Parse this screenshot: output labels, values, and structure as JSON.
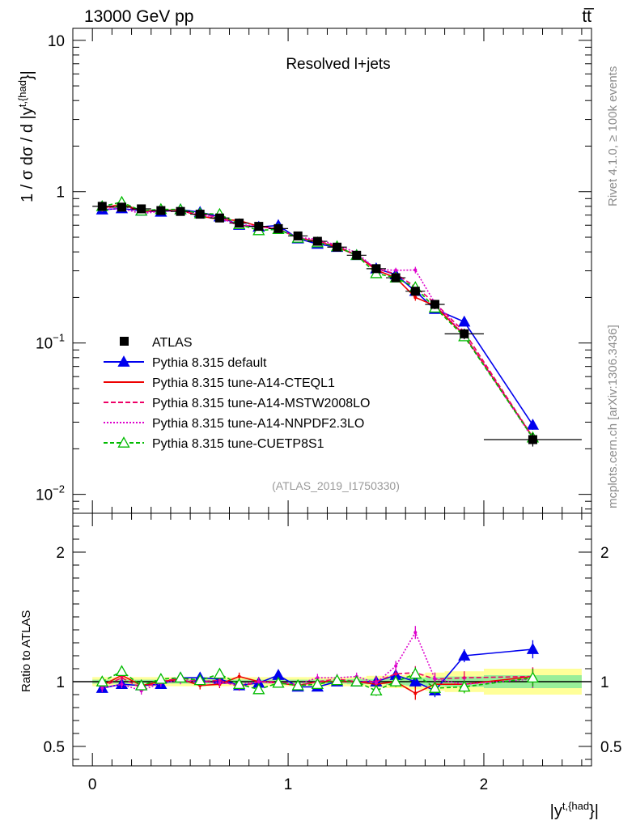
{
  "header": {
    "energy_label": "13000 GeV pp",
    "process_label": "tt̅",
    "side_label_top": "Rivet 4.1.0, ≥ 100k events",
    "side_label_bottom": "mcplots.cern.ch [arXiv:1306.3436]"
  },
  "chart_data": {
    "type": "line",
    "title": "Resolved l+jets",
    "analysis_id": "(ATLAS_2019_I1750330)",
    "ylabel_main": "1 / σ dσ / d |y",
    "ylabel_sup": "t,{had",
    "ylabel_tail": "}|",
    "ylabel_ratio": "Ratio to ATLAS",
    "xlabel": "|y",
    "xlabel_sup": "t,{had",
    "xlabel_tail": "}|",
    "xlim": [
      -0.1,
      2.55
    ],
    "ylim_main": [
      0.0075,
      12
    ],
    "ylim_ratio": [
      0.35,
      2.3
    ],
    "x_ticks": [
      "0",
      "1",
      "2"
    ],
    "y_ticks_main": [
      {
        "value": 10,
        "base": "10",
        "exp": ""
      },
      {
        "value": 1,
        "base": "1",
        "exp": ""
      },
      {
        "value": 0.1,
        "base": "10",
        "exp": "−1"
      },
      {
        "value": 0.01,
        "base": "10",
        "exp": "−2"
      }
    ],
    "y_ticks_ratio": [
      "0.5",
      "1",
      "2"
    ],
    "bin_edges": [
      0,
      0.1,
      0.2,
      0.3,
      0.4,
      0.5,
      0.6,
      0.7,
      0.8,
      0.9,
      1.0,
      1.1,
      1.2,
      1.3,
      1.4,
      1.5,
      1.6,
      1.7,
      1.8,
      2.0,
      2.5
    ],
    "x": [
      0.05,
      0.15,
      0.25,
      0.35,
      0.45,
      0.55,
      0.65,
      0.75,
      0.85,
      0.95,
      1.05,
      1.15,
      1.25,
      1.35,
      1.45,
      1.55,
      1.65,
      1.75,
      1.9,
      2.25
    ],
    "data": {
      "name": "ATLAS",
      "values": [
        0.8,
        0.79,
        0.77,
        0.75,
        0.74,
        0.71,
        0.67,
        0.62,
        0.59,
        0.57,
        0.51,
        0.47,
        0.43,
        0.38,
        0.31,
        0.27,
        0.22,
        0.18,
        0.115,
        0.023
      ],
      "ratio_band_outer": [
        0.035,
        0.035,
        0.035,
        0.035,
        0.035,
        0.035,
        0.035,
        0.035,
        0.035,
        0.035,
        0.035,
        0.035,
        0.035,
        0.035,
        0.045,
        0.05,
        0.06,
        0.07,
        0.08,
        0.1
      ],
      "ratio_band_inner": [
        0.015,
        0.015,
        0.015,
        0.015,
        0.015,
        0.015,
        0.015,
        0.015,
        0.015,
        0.015,
        0.015,
        0.015,
        0.015,
        0.02,
        0.02,
        0.025,
        0.03,
        0.035,
        0.04,
        0.05
      ]
    },
    "series": [
      {
        "name": "Pythia 8.315 default",
        "color": "#0000ee",
        "dash": "",
        "marker": "triangle-filled",
        "ratio": [
          0.95,
          0.98,
          0.97,
          0.98,
          1.03,
          1.03,
          1.02,
          0.97,
          0.99,
          1.05,
          0.96,
          0.96,
          1.0,
          1.0,
          1.0,
          1.05,
          1.0,
          0.93,
          1.2,
          1.25
        ],
        "errors": [
          0.03,
          0.03,
          0.03,
          0.03,
          0.03,
          0.03,
          0.03,
          0.03,
          0.03,
          0.03,
          0.03,
          0.03,
          0.03,
          0.03,
          0.04,
          0.04,
          0.05,
          0.05,
          0.05,
          0.07
        ]
      },
      {
        "name": "Pythia 8.315 tune-A14-CTEQL1",
        "color": "#ee0000",
        "dash": "",
        "marker": "none",
        "ratio": [
          0.97,
          1.05,
          0.97,
          1.0,
          1.02,
          0.97,
          0.98,
          1.04,
          1.0,
          0.99,
          0.97,
          1.0,
          1.0,
          1.0,
          0.98,
          1.0,
          0.91,
          0.98,
          0.98,
          1.04
        ],
        "errors": [
          0.03,
          0.03,
          0.03,
          0.03,
          0.03,
          0.03,
          0.03,
          0.03,
          0.03,
          0.03,
          0.03,
          0.03,
          0.03,
          0.03,
          0.04,
          0.04,
          0.05,
          0.05,
          0.05,
          0.07
        ]
      },
      {
        "name": "Pythia 8.315 tune-A14-MSTW2008LO",
        "color": "#ee0066",
        "dash": "6,3",
        "marker": "none",
        "ratio": [
          0.96,
          1.03,
          0.95,
          1.0,
          1.03,
          1.0,
          1.01,
          0.96,
          1.0,
          1.0,
          0.97,
          1.0,
          1.02,
          1.0,
          1.0,
          1.06,
          1.07,
          1.02,
          1.03,
          1.04
        ],
        "errors": [
          0.03,
          0.03,
          0.03,
          0.03,
          0.03,
          0.03,
          0.03,
          0.03,
          0.03,
          0.03,
          0.03,
          0.03,
          0.03,
          0.03,
          0.04,
          0.04,
          0.05,
          0.05,
          0.05,
          0.07
        ]
      },
      {
        "name": "Pythia 8.315 tune-A14-NNPDF2.3LO",
        "color": "#dd00cc",
        "dash": "2,2",
        "marker": "none",
        "ratio": [
          0.95,
          0.98,
          0.93,
          0.99,
          1.01,
          1.0,
          0.99,
          0.98,
          1.0,
          0.99,
          0.98,
          1.03,
          1.03,
          1.04,
          0.99,
          1.12,
          1.38,
          1.02,
          0.98,
          1.02
        ],
        "errors": [
          0.03,
          0.03,
          0.03,
          0.03,
          0.03,
          0.03,
          0.03,
          0.03,
          0.03,
          0.03,
          0.03,
          0.03,
          0.03,
          0.03,
          0.04,
          0.04,
          0.05,
          0.05,
          0.05,
          0.07
        ]
      },
      {
        "name": "Pythia 8.315 tune-CUETP8S1",
        "color": "#00bb00",
        "dash": "5,3",
        "marker": "triangle-open",
        "ratio": [
          1.0,
          1.08,
          0.97,
          1.02,
          1.03,
          1.01,
          1.06,
          0.98,
          0.94,
          0.99,
          0.97,
          0.98,
          1.01,
          1.0,
          0.93,
          1.0,
          1.06,
          0.95,
          0.96,
          1.03
        ],
        "errors": [
          0.03,
          0.03,
          0.03,
          0.03,
          0.03,
          0.03,
          0.03,
          0.03,
          0.03,
          0.03,
          0.03,
          0.03,
          0.03,
          0.03,
          0.04,
          0.04,
          0.05,
          0.05,
          0.05,
          0.07
        ]
      }
    ]
  }
}
